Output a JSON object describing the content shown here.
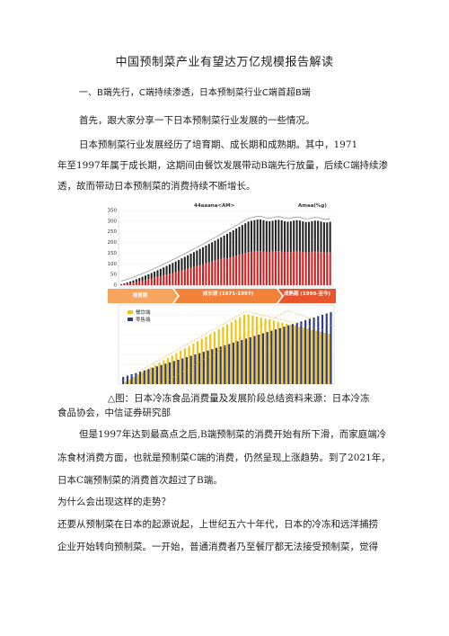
{
  "doc": {
    "title": "中国预制菜产业有望达万亿规模报告解读",
    "section1_heading": "一、B端先行，C端持续渗透，日本预制菜行业C端首超B端",
    "p1": "首先，跟大家分享一下日本预制菜行业发展的一些情况。",
    "p2_line1": "日本预制菜行业发展经历了培育期、成长期和成熟期。其中，1971",
    "p2_line2": "年至1997年属于成长期，这期间由餐饮发展带动B端先行放量，后续C端持续渗",
    "p2_line3": "透，故而带动日本预制菜的消费持续不断增长。",
    "caption_line1": "△图：日本冷冻食品消费量及发展阶段总结资料来源：日本冷冻",
    "caption_line2": "食品协会，中信证券研究部",
    "p3_line1": "但是1997年达到最高点之后,B端预制菜的消费开始有所下滑，而家庭端冷",
    "p3_line2": "冻食材消费方面，也就是预制菜C端的消费，仍然呈现上涨趋势。到了2021年，",
    "p3_line3": "日本C端预制菜的消费首次超过了B端。",
    "p4": "为什么会出现这样的走势？",
    "p5_line1": "还要从预制菜在日本的起源说起，上世纪五六十年代，日本的冷冻和远洋捕捞",
    "p5_line2": "企业开始转向预制菜。一开始，普通消费者乃至餐厅都无法接受预制菜，觉得"
  },
  "chart_data": [
    {
      "type": "bar",
      "legend_left": "44aaana<AM>",
      "legend_right": "Amaa(%g)",
      "yticks": [
        "350",
        "300",
        "250",
        "200",
        "150",
        "100",
        "50",
        "0"
      ],
      "ylim": [
        0,
        350
      ],
      "stage_labels": [
        "培育期",
        "成长期 (1971-1997)",
        "成熟期 (1998-至今)"
      ],
      "colors": {
        "bar_bottom": "#d11a1a",
        "bar_top": "#222222",
        "line": "#999999"
      }
    },
    {
      "type": "bar",
      "legend": [
        "餐饮端",
        "零售端"
      ],
      "colors": {
        "餐饮端": "#f2c40f",
        "零售端": "#2b3a8a"
      }
    }
  ]
}
